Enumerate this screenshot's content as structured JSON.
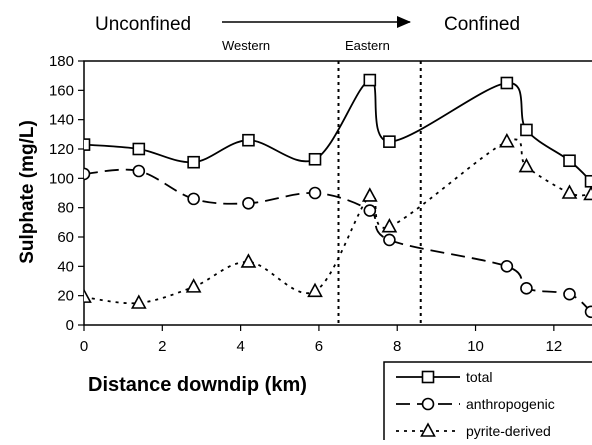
{
  "header": {
    "left_label": "Unconfined",
    "right_label": "Confined",
    "region_left": "Western",
    "region_right": "Eastern"
  },
  "chart_data": {
    "type": "line",
    "title": "",
    "xlabel": "Distance downdip (km)",
    "ylabel": "Sulphate (mg/L)",
    "xlim": [
      0,
      13
    ],
    "ylim": [
      0,
      180
    ],
    "xticks": [
      0,
      2,
      4,
      6,
      8,
      10,
      12
    ],
    "yticks": [
      0,
      20,
      40,
      60,
      80,
      100,
      120,
      140,
      160,
      180
    ],
    "grid": false,
    "legend_position": "bottom-right",
    "vertical_lines_x": [
      6.5,
      8.6
    ],
    "series": [
      {
        "name": "total",
        "marker": "square",
        "line_style": "solid",
        "x": [
          0,
          1.4,
          2.8,
          4.2,
          5.9,
          7.3,
          7.8,
          10.8,
          11.3,
          12.4,
          12.95
        ],
        "y": [
          123,
          120,
          111,
          126,
          113,
          167,
          125,
          165,
          133,
          112,
          98
        ]
      },
      {
        "name": "anthropogenic",
        "marker": "circle",
        "line_style": "long-dash",
        "x": [
          0,
          1.4,
          2.8,
          4.2,
          5.9,
          7.3,
          7.8,
          10.8,
          11.3,
          12.4,
          12.95
        ],
        "y": [
          103,
          105,
          86,
          83,
          90,
          78,
          58,
          40,
          25,
          21,
          9
        ]
      },
      {
        "name": "pyrite-derived",
        "marker": "triangle",
        "line_style": "dotted",
        "x": [
          0,
          1.4,
          2.8,
          4.2,
          5.9,
          7.3,
          7.8,
          10.8,
          11.3,
          12.4,
          12.95
        ],
        "y": [
          19,
          15,
          26,
          43,
          23,
          88,
          67,
          125,
          108,
          90,
          89
        ]
      }
    ]
  }
}
